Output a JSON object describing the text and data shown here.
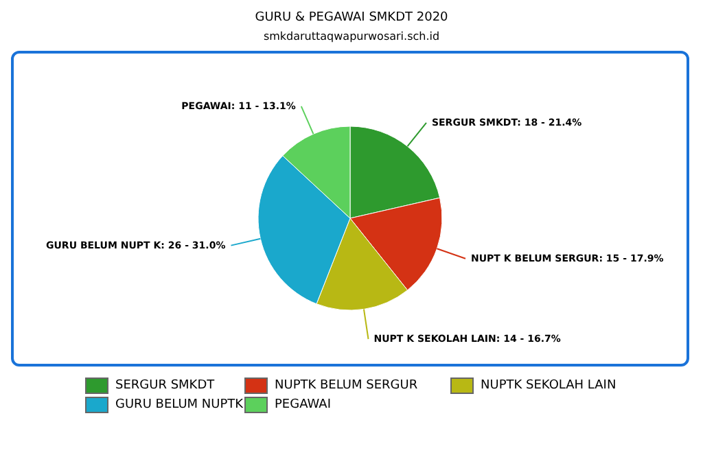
{
  "chart_data": {
    "type": "pie",
    "title": "GURU & PEGAWAI SMKDT 2020",
    "subtitle": "smkdaruttaqwapurwosari.sch.id",
    "categories": [
      "SERGUR SMKDT",
      "NUPTK BELUM SERGUR",
      "NUPTK SEKOLAH LAIN",
      "GURU BELUM NUPTK",
      "PEGAWAI"
    ],
    "values": [
      18,
      15,
      14,
      26,
      11
    ],
    "colors": [
      "#2e9a2e",
      "#d43214",
      "#b8b814",
      "#1aa8cc",
      "#5cd05c"
    ],
    "value_labels": [
      "SERGUR SMKDT: 18 - 21.4%",
      "NUPT K BELUM SERGUR: 15 - 17.9%",
      "NUPT K SEKOLAH LAIN: 14 - 16.7%",
      "GURU BELUM NUPT K: 26 - 31.0%",
      "PEGAWAI: 11 - 13.1%"
    ],
    "legend": "bottom"
  }
}
